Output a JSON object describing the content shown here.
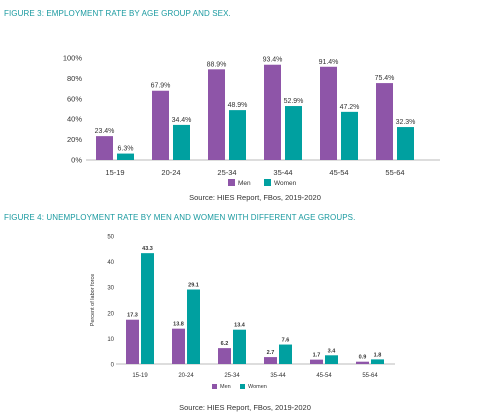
{
  "chart_data": [
    {
      "type": "bar",
      "title": "FIGURE 3: EMPLOYMENT RATE BY AGE GROUP AND SEX.",
      "source": "Source: HIES Report, FBos, 2019-2020",
      "categories": [
        "15-19",
        "20-24",
        "25-34",
        "35-44",
        "45-54",
        "55-64"
      ],
      "series": [
        {
          "name": "Men",
          "color": "#8e55a8",
          "values": [
            23.4,
            67.9,
            88.9,
            93.4,
            91.4,
            75.4
          ],
          "labels": [
            "23.4%",
            "67.9%",
            "88.9%",
            "93.4%",
            "91.4%",
            "75.4%"
          ]
        },
        {
          "name": "Women",
          "color": "#00a0a0",
          "values": [
            6.3,
            34.4,
            48.9,
            52.9,
            47.2,
            32.3
          ],
          "labels": [
            "6.3%",
            "34.4%",
            "48.9%",
            "52.9%",
            "47.2%",
            "32.3%"
          ]
        }
      ],
      "ylim": [
        0,
        100
      ],
      "yticks": [
        "0%",
        "20%",
        "40%",
        "60%",
        "80%",
        "100%"
      ],
      "ylabel": "",
      "xlabel": "",
      "grid": false,
      "legend": "bottom"
    },
    {
      "type": "bar",
      "title": "FIGURE 4: UNEMPLOYMENT RATE BY MEN AND WOMEN WITH DIFFERENT AGE GROUPS.",
      "source": "Source: HIES Report, FBos, 2019-2020",
      "categories": [
        "15-19",
        "20-24",
        "25-34",
        "35-44",
        "45-54",
        "55-64"
      ],
      "series": [
        {
          "name": "Men",
          "color": "#8e55a8",
          "values": [
            17.3,
            13.8,
            6.2,
            2.7,
            1.7,
            0.9
          ],
          "labels": [
            "17.3",
            "13.8",
            "6.2",
            "2.7",
            "1.7",
            "0.9"
          ]
        },
        {
          "name": "Women",
          "color": "#00a0a0",
          "values": [
            43.3,
            29.1,
            13.4,
            7.6,
            3.4,
            1.8
          ],
          "labels": [
            "43.3",
            "29.1",
            "13.4",
            "7.6",
            "3.4",
            "1.8"
          ]
        }
      ],
      "ylim": [
        0,
        50
      ],
      "yticks": [
        "0",
        "10",
        "20",
        "30",
        "40",
        "50"
      ],
      "ylabel": "Percent of labor force",
      "xlabel": "",
      "grid": false,
      "legend": "bottom"
    }
  ]
}
